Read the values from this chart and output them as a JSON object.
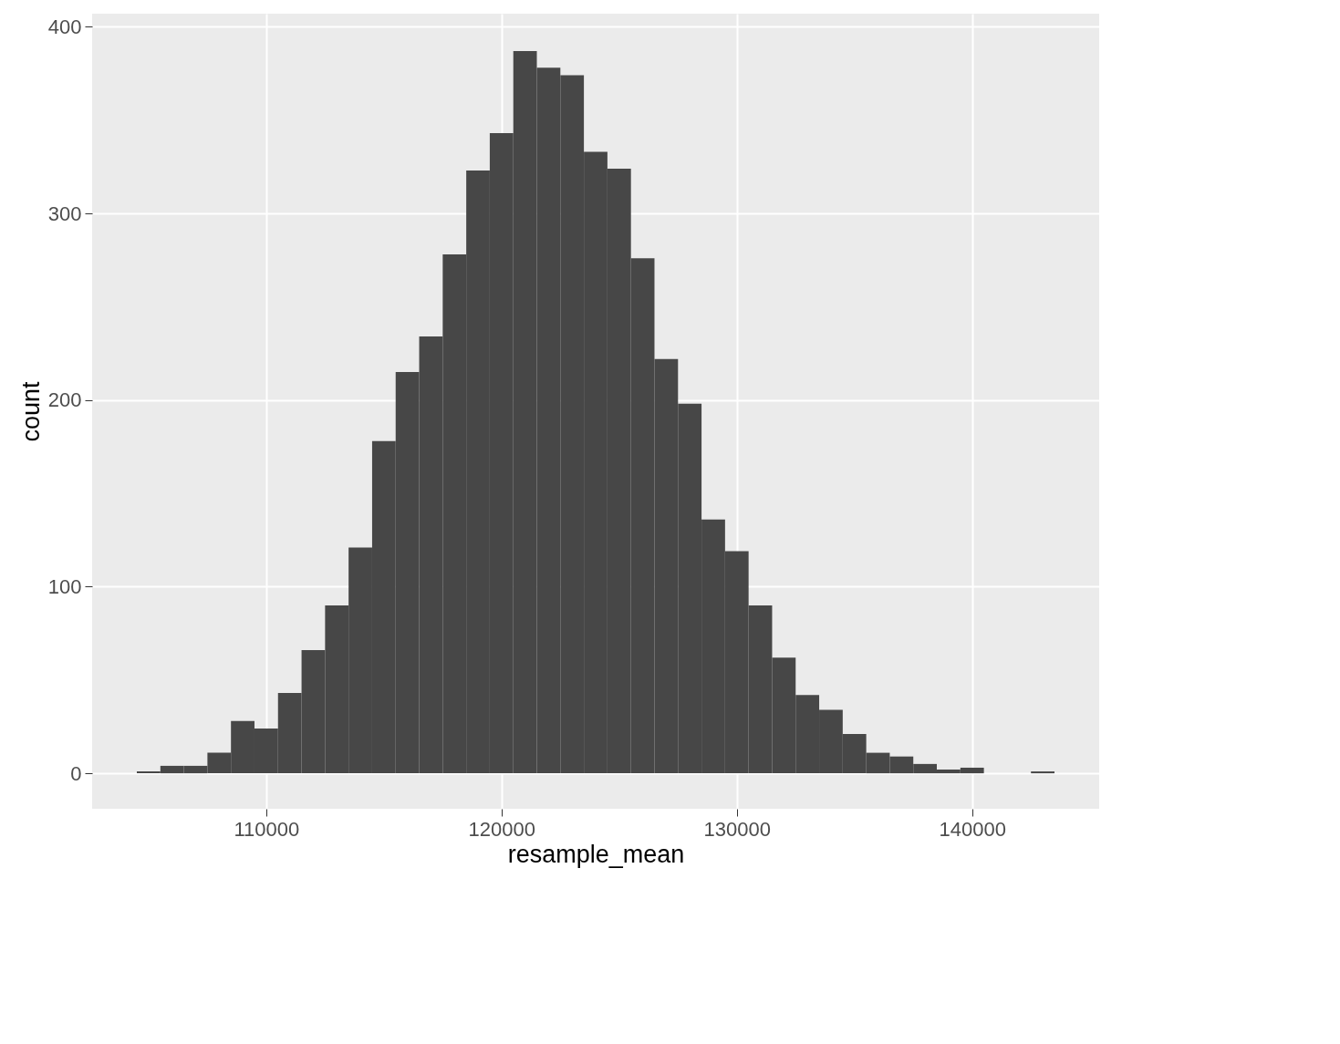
{
  "chart_data": {
    "type": "histogram",
    "xlabel": "resample_mean",
    "ylabel": "count",
    "color": "#474747",
    "bins": [
      104500,
      105500,
      106500,
      107500,
      108500,
      109500,
      110500,
      111500,
      112500,
      113500,
      114500,
      115500,
      116500,
      117500,
      118500,
      119500,
      120500,
      121500,
      122500,
      123500,
      124500,
      125500,
      126500,
      127500,
      128500,
      129500,
      130500,
      131500,
      132500,
      133500,
      134500,
      135500,
      136500,
      137500,
      138500,
      139500,
      140500,
      141500,
      142500,
      143500
    ],
    "values": [
      1,
      4,
      4,
      11,
      28,
      24,
      43,
      66,
      90,
      121,
      178,
      215,
      234,
      278,
      323,
      343,
      387,
      378,
      374,
      333,
      324,
      276,
      222,
      198,
      136,
      119,
      90,
      62,
      42,
      34,
      21,
      11,
      9,
      5,
      2,
      3,
      0,
      0,
      1
    ],
    "xlim": [
      102600,
      145400
    ],
    "xticks": [
      110000,
      120000,
      130000,
      140000
    ],
    "ylim": [
      -19,
      407
    ],
    "yticks": [
      0,
      100,
      200,
      300,
      400
    ],
    "grid": true
  }
}
